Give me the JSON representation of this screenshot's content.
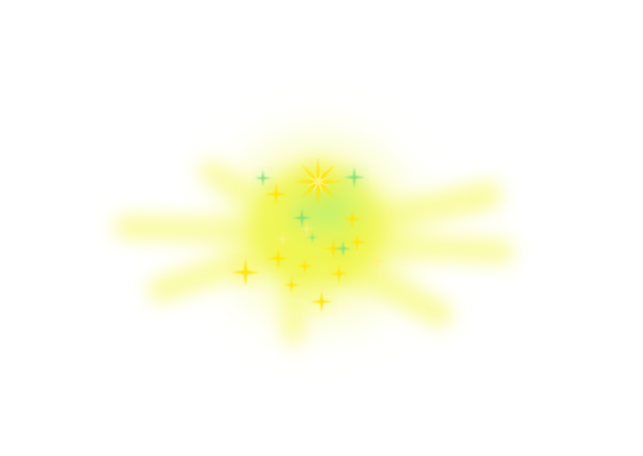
{
  "image": {
    "background_color": "#ffffff",
    "glow_color": "#f5fa3c",
    "star_yellow": "#ffe600",
    "star_yellow_light": "#fff27a",
    "star_green": "#7fe27a",
    "ray_color": "#f7f97a"
  }
}
